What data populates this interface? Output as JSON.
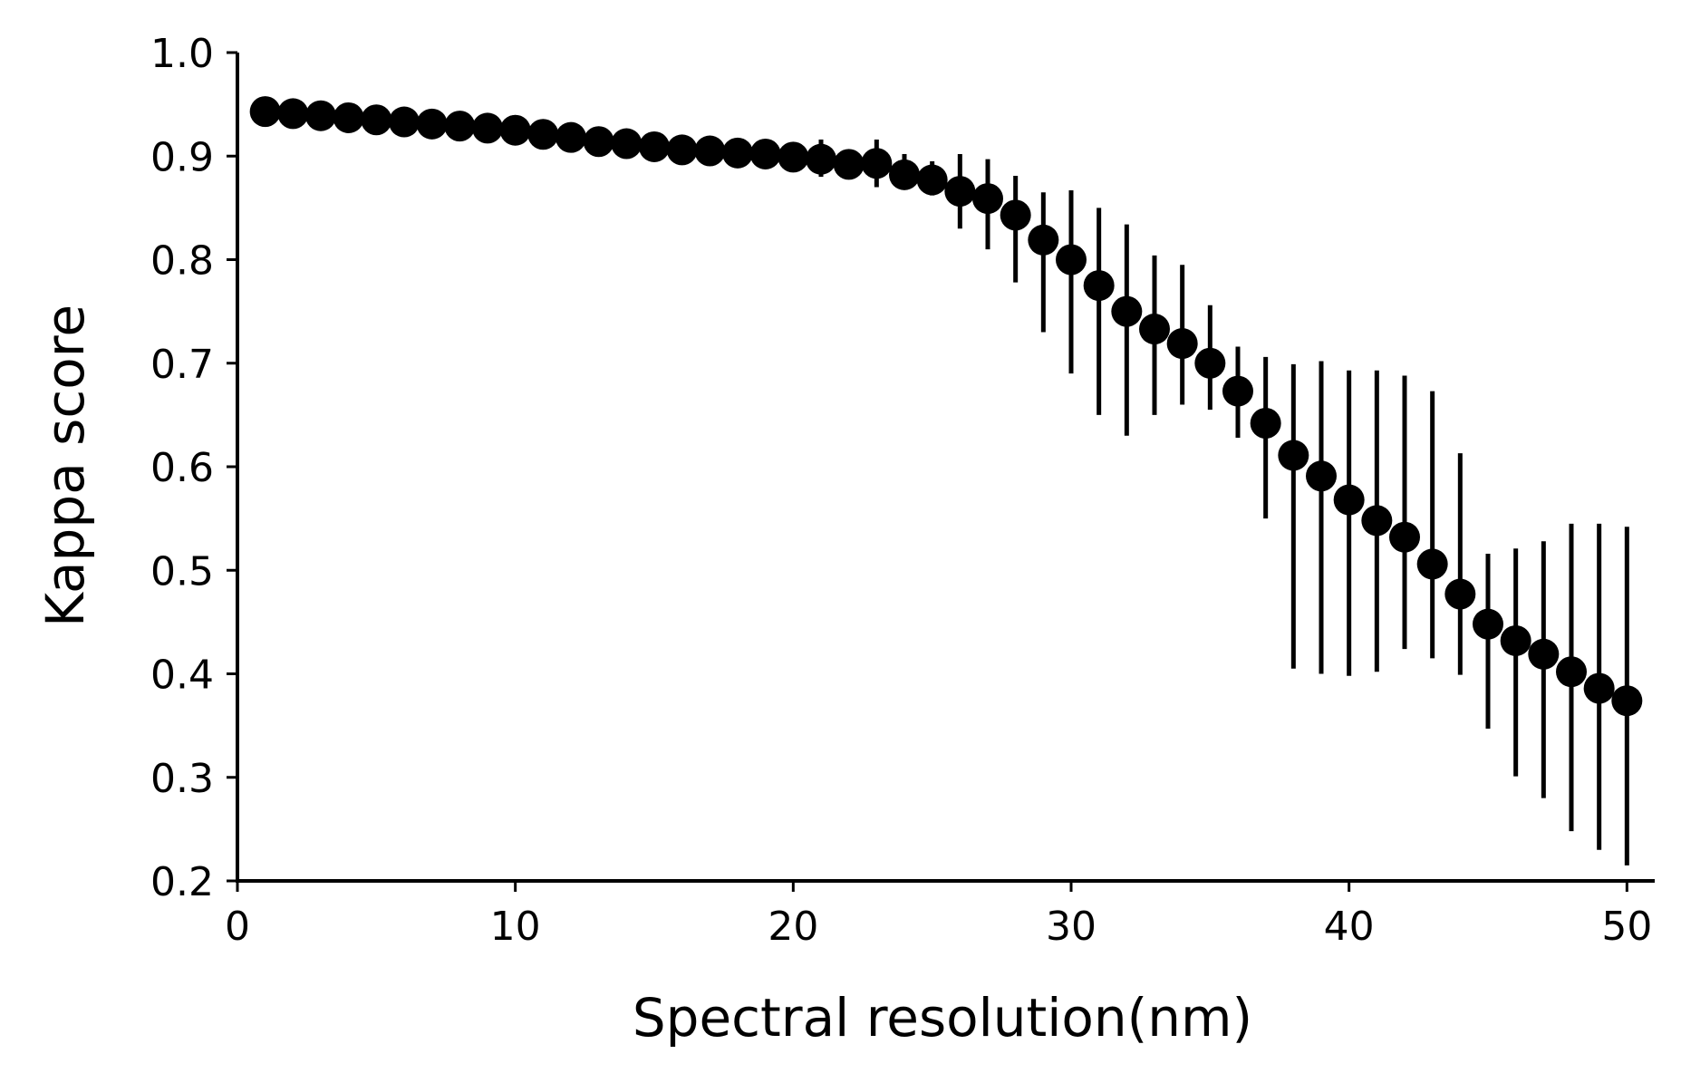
{
  "chart_data": {
    "type": "scatter",
    "title": "",
    "xlabel": "Spectral resolution(nm)",
    "ylabel": "Kappa score",
    "xlim": [
      0,
      51
    ],
    "ylim": [
      0.2,
      1.0
    ],
    "xticks": [
      0,
      10,
      20,
      30,
      40,
      50
    ],
    "xtick_labels": [
      "0",
      "10",
      "20",
      "30",
      "40",
      "50"
    ],
    "yticks": [
      0.2,
      0.3,
      0.4,
      0.5,
      0.6,
      0.7,
      0.8,
      0.9,
      1.0
    ],
    "ytick_labels": [
      "0.2",
      "0.3",
      "0.4",
      "0.5",
      "0.6",
      "0.7",
      "0.8",
      "0.9",
      "1.0"
    ],
    "grid": false,
    "legend": false,
    "colors": {
      "marker": "#000000",
      "errorbar": "#000000",
      "axis": "#000000"
    },
    "series": [
      {
        "marker": "circle",
        "x": [
          1,
          2,
          3,
          4,
          5,
          6,
          7,
          8,
          9,
          10,
          11,
          12,
          13,
          14,
          15,
          16,
          17,
          18,
          19,
          20,
          21,
          22,
          23,
          24,
          25,
          26,
          27,
          28,
          29,
          30,
          31,
          32,
          33,
          34,
          35,
          36,
          37,
          38,
          39,
          40,
          41,
          42,
          43,
          44,
          45,
          46,
          47,
          48,
          49,
          50
        ],
        "y": [
          0.943,
          0.941,
          0.939,
          0.937,
          0.935,
          0.933,
          0.931,
          0.929,
          0.927,
          0.925,
          0.921,
          0.918,
          0.914,
          0.912,
          0.909,
          0.906,
          0.905,
          0.903,
          0.902,
          0.899,
          0.897,
          0.892,
          0.893,
          0.882,
          0.877,
          0.866,
          0.859,
          0.843,
          0.819,
          0.8,
          0.775,
          0.75,
          0.733,
          0.719,
          0.7,
          0.673,
          0.642,
          0.611,
          0.591,
          0.568,
          0.548,
          0.532,
          0.506,
          0.477,
          0.448,
          0.432,
          0.419,
          0.402,
          0.386,
          0.374
        ],
        "yerr_low": [
          0.943,
          0.941,
          0.939,
          0.937,
          0.935,
          0.933,
          0.931,
          0.929,
          0.927,
          0.925,
          0.921,
          0.918,
          0.914,
          0.912,
          0.909,
          0.906,
          0.905,
          0.903,
          0.902,
          0.899,
          0.88,
          0.885,
          0.87,
          0.872,
          0.862,
          0.83,
          0.81,
          0.778,
          0.73,
          0.69,
          0.65,
          0.63,
          0.65,
          0.66,
          0.655,
          0.628,
          0.55,
          0.405,
          0.4,
          0.398,
          0.402,
          0.424,
          0.415,
          0.399,
          0.347,
          0.301,
          0.28,
          0.248,
          0.23,
          0.215
        ],
        "yerr_high": [
          0.943,
          0.941,
          0.939,
          0.937,
          0.935,
          0.933,
          0.931,
          0.929,
          0.927,
          0.925,
          0.921,
          0.918,
          0.914,
          0.912,
          0.909,
          0.906,
          0.905,
          0.903,
          0.902,
          0.899,
          0.916,
          0.9,
          0.916,
          0.902,
          0.895,
          0.902,
          0.897,
          0.881,
          0.865,
          0.867,
          0.85,
          0.834,
          0.804,
          0.795,
          0.756,
          0.716,
          0.706,
          0.699,
          0.702,
          0.693,
          0.693,
          0.688,
          0.673,
          0.613,
          0.516,
          0.521,
          0.528,
          0.545,
          0.545,
          0.542
        ]
      }
    ]
  }
}
